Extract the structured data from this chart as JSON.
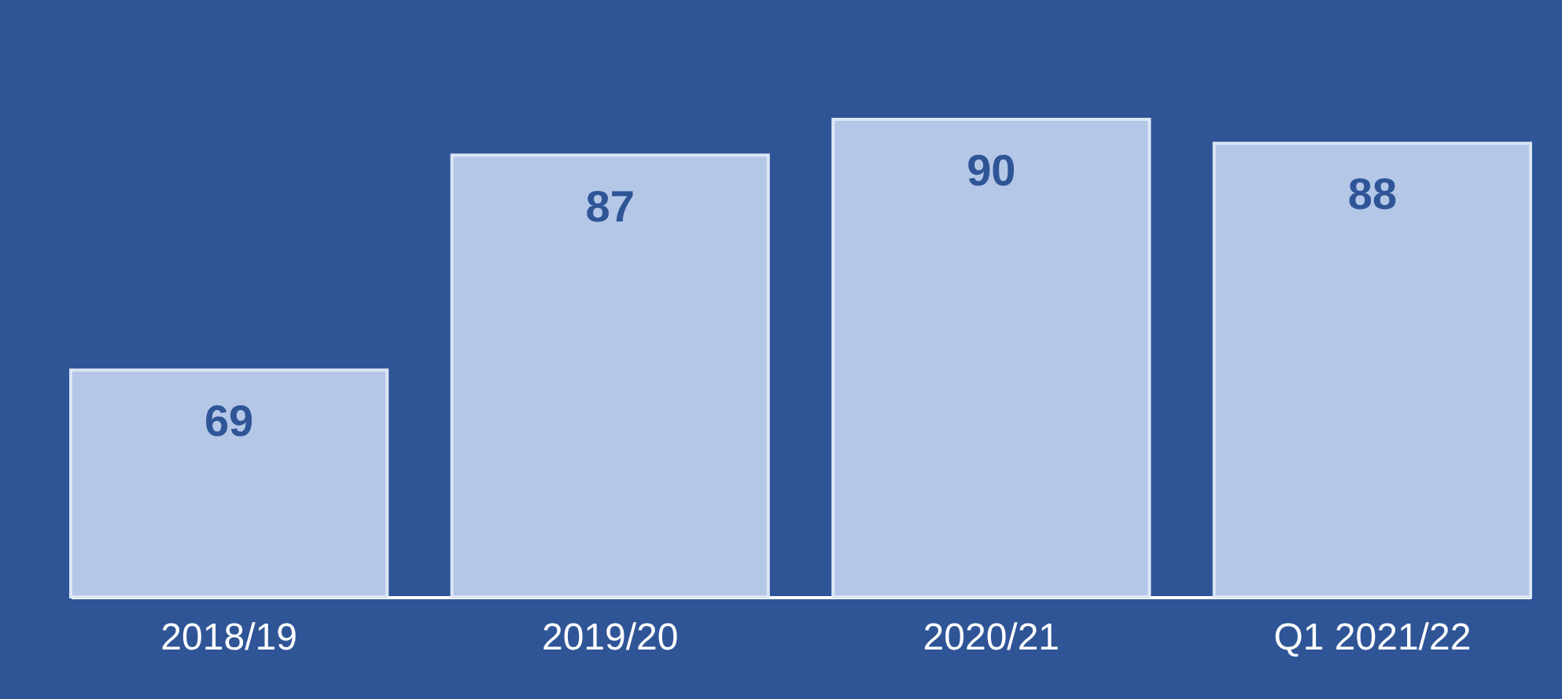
{
  "chart_data": {
    "type": "bar",
    "categories": [
      "2018/19",
      "2019/20",
      "2020/21",
      "Q1 2021/22"
    ],
    "values": [
      69,
      87,
      90,
      88
    ],
    "color": "#b4c7e7",
    "ylim": [
      50,
      100
    ],
    "data_labels": true,
    "grid": false
  }
}
